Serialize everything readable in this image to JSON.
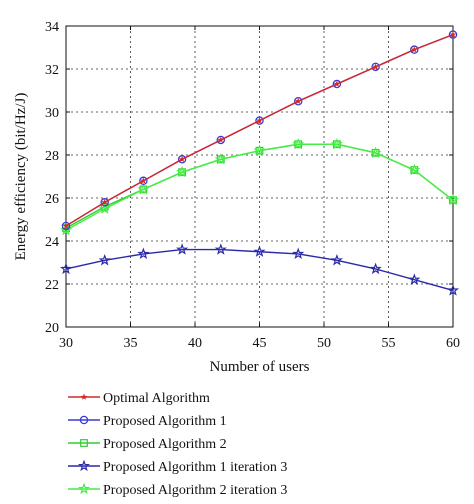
{
  "chart_data": {
    "type": "line",
    "xlabel": "Number of users",
    "ylabel": "Energy efficiency (bit/Hz/J)",
    "xlim": [
      30,
      60
    ],
    "ylim": [
      20,
      34
    ],
    "xticks": [
      30,
      35,
      40,
      45,
      50,
      55,
      60
    ],
    "yticks": [
      20,
      22,
      24,
      26,
      28,
      30,
      32,
      34
    ],
    "grid": true,
    "legend_position": "below-plot",
    "x": [
      30,
      33,
      36,
      39,
      42,
      45,
      48,
      51,
      54,
      57,
      60
    ],
    "series": [
      {
        "name": "Optimal Algorithm",
        "color": "#d62728",
        "marker": "star-small",
        "values": [
          24.7,
          25.8,
          26.8,
          27.8,
          28.7,
          29.6,
          30.5,
          31.3,
          32.1,
          32.9,
          33.6
        ]
      },
      {
        "name": "Proposed Algorithm 1",
        "color": "#3a3ad6",
        "marker": "circle",
        "values": [
          24.7,
          25.8,
          26.8,
          27.8,
          28.7,
          29.6,
          30.5,
          31.3,
          32.1,
          32.9,
          33.6
        ]
      },
      {
        "name": "Proposed Algorithm 2",
        "color": "#33cc33",
        "marker": "square",
        "values": [
          24.6,
          25.6,
          26.4,
          27.2,
          27.8,
          28.2,
          28.5,
          28.5,
          28.1,
          27.3,
          25.9
        ]
      },
      {
        "name": "Proposed Algorithm 1 iteration 3",
        "color": "#2a2aa8",
        "marker": "star",
        "values": [
          22.7,
          23.1,
          23.4,
          23.6,
          23.6,
          23.5,
          23.4,
          23.1,
          22.7,
          22.2,
          21.7
        ]
      },
      {
        "name": "Proposed Algorithm 2 iteration 3",
        "color": "#44ee44",
        "marker": "star",
        "values": [
          24.5,
          25.5,
          26.4,
          27.2,
          27.8,
          28.2,
          28.5,
          28.5,
          28.1,
          27.3,
          25.9
        ]
      }
    ]
  }
}
